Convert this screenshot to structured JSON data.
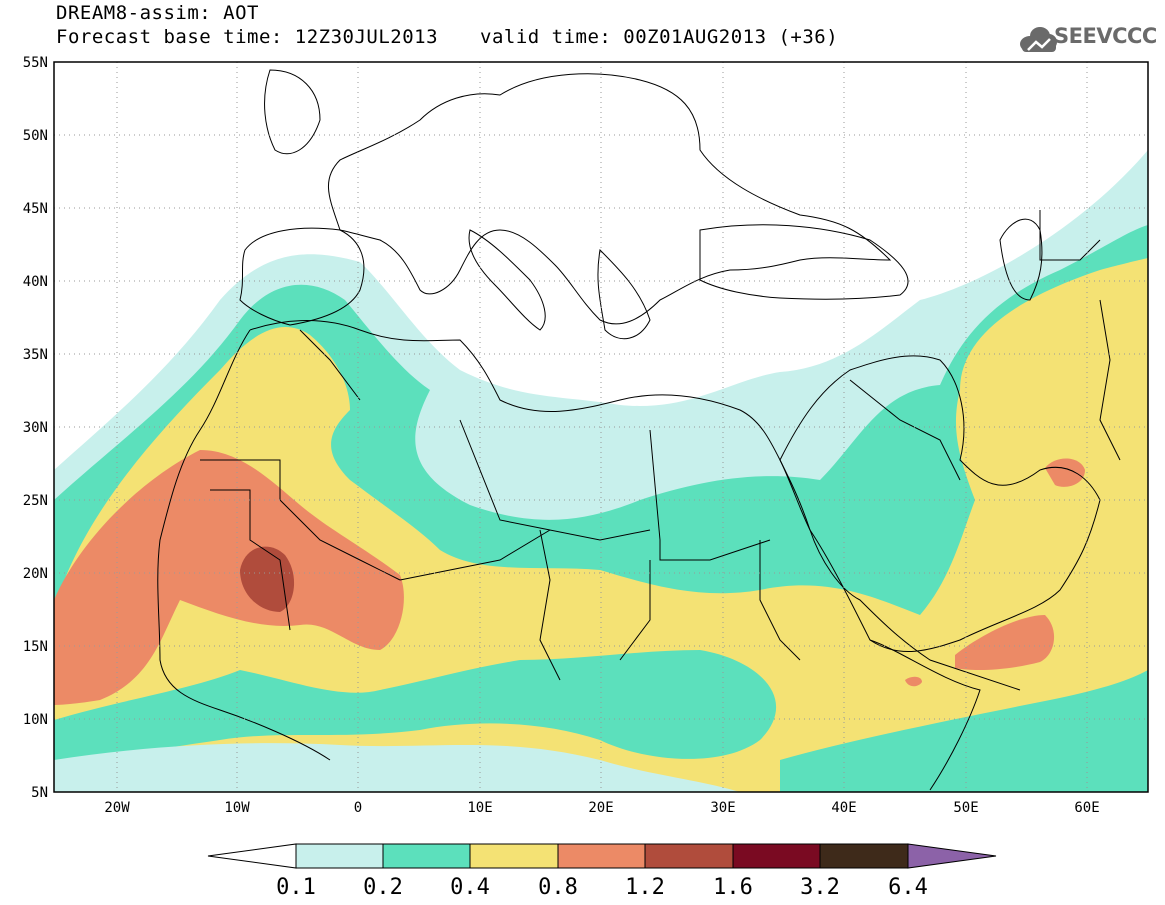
{
  "header": {
    "title": "DREAM8-assim: AOT",
    "base_time": "Forecast base time: 12Z30JUL2013",
    "valid_time": "valid time: 00Z01AUG2013 (+36)",
    "logo_text": "SEEVCCC"
  },
  "axes": {
    "lat_labels": [
      "55N",
      "50N",
      "45N",
      "40N",
      "35N",
      "30N",
      "25N",
      "20N",
      "15N",
      "10N",
      "5N"
    ],
    "lon_labels": [
      "20W",
      "10W",
      "0",
      "10E",
      "20E",
      "30E",
      "40E",
      "50E",
      "60E"
    ]
  },
  "legend": {
    "labels": [
      "0.1",
      "0.2",
      "0.4",
      "0.8",
      "1.2",
      "1.6",
      "3.2",
      "6.4"
    ],
    "colors": [
      "#c8f0ec",
      "#5ce0bc",
      "#f4e274",
      "#ec8a66",
      "#b04c3c",
      "#7a0a22",
      "#3e2a1a",
      "#8c62a8"
    ]
  },
  "colors": {
    "level_01": "#c8f0ec",
    "level_02": "#5ce0bc",
    "level_04": "#f4e274",
    "level_08": "#ec8a66",
    "level_12": "#b04c3c"
  }
}
